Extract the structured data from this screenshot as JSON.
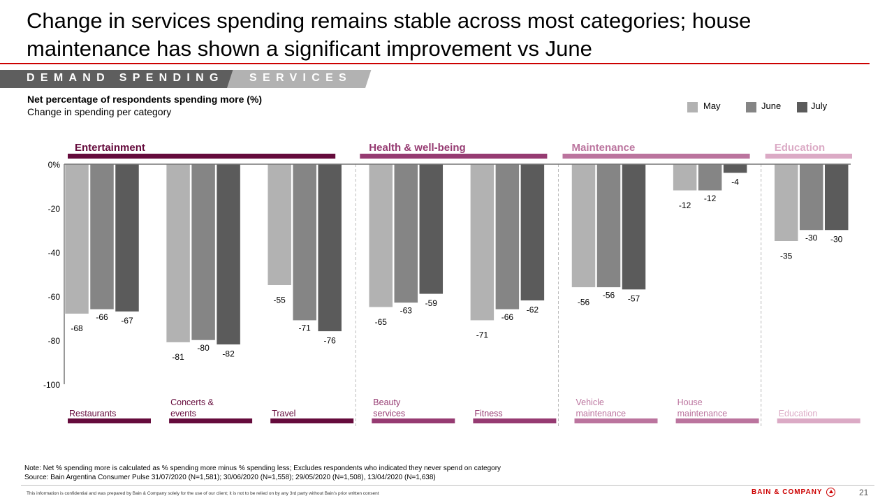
{
  "header": {
    "title": "Change in services spending remains stable across most categories; house maintenance has shown a significant improvement vs June",
    "tracker_primary": "DEMAND SPENDING",
    "tracker_secondary": "SERVICES"
  },
  "chart_header": {
    "subtitle_bold": "Net percentage of respondents spending more (%)",
    "subtitle": "Change in spending per category"
  },
  "legend": [
    {
      "label": "May",
      "color": "#b2b2b2"
    },
    {
      "label": "June",
      "color": "#858585"
    },
    {
      "label": "July",
      "color": "#5b5b5b"
    }
  ],
  "chart_data": {
    "type": "bar",
    "title": "Net percentage of respondents spending more (%)",
    "subtitle": "Change in spending per category",
    "xlabel": "",
    "ylabel": "",
    "ylim": [
      -100,
      0
    ],
    "yticks": [
      0,
      -20,
      -40,
      -60,
      -80,
      -100
    ],
    "ytick_labels": [
      "0%",
      "-20",
      "-40",
      "-60",
      "-80",
      "-100"
    ],
    "grid": false,
    "legend_position": "top-right",
    "series_names": [
      "May",
      "June",
      "July"
    ],
    "series_colors": [
      "#b2b2b2",
      "#858585",
      "#5b5b5b"
    ],
    "groups": [
      {
        "name": "Entertainment",
        "color": "#650b3c",
        "categories": [
          0,
          1,
          2
        ]
      },
      {
        "name": "Health & well-being",
        "color": "#963b72",
        "categories": [
          3,
          4
        ]
      },
      {
        "name": "Maintenance",
        "color": "#bb749e",
        "categories": [
          5,
          6
        ]
      },
      {
        "name": "Education",
        "color": "#dbaac5",
        "categories": [
          7
        ]
      }
    ],
    "categories": [
      "Restaurants",
      "Concerts & events",
      "Travel",
      "Beauty services",
      "Fitness",
      "Vehicle maintenance",
      "House maintenance",
      "Education"
    ],
    "category_label_lines": [
      [
        "Restaurants"
      ],
      [
        "Concerts &",
        "events"
      ],
      [
        "Travel"
      ],
      [
        "Beauty",
        "services"
      ],
      [
        "Fitness"
      ],
      [
        "Vehicle",
        "maintenance"
      ],
      [
        "House",
        "maintenance"
      ],
      [
        "Education"
      ]
    ],
    "series": [
      {
        "name": "May",
        "values": [
          -68,
          -81,
          -55,
          -65,
          -71,
          -56,
          -12,
          -35
        ]
      },
      {
        "name": "June",
        "values": [
          -66,
          -80,
          -71,
          -63,
          -66,
          -56,
          -12,
          -30
        ]
      },
      {
        "name": "July",
        "values": [
          -67,
          -82,
          -76,
          -59,
          -62,
          -57,
          -4,
          -30
        ]
      }
    ]
  },
  "footer": {
    "note": "Note: Net % spending more is calculated as % spending more minus % spending less; Excludes respondents who indicated they never spend on category",
    "source": "Source: Bain Argentina Consumer Pulse 31/07/2020 (N=1,581); 30/06/2020 (N=1,558); 29/05/2020 (N=1,508), 13/04/2020 (N=1,638)",
    "confidential": "This information is confidential and was prepared by Bain & Company solely for the use of our client; it is not to be relied on by any 3rd party without Bain's prior written consent",
    "brand": "BAIN & COMPANY",
    "page_number": "21"
  }
}
